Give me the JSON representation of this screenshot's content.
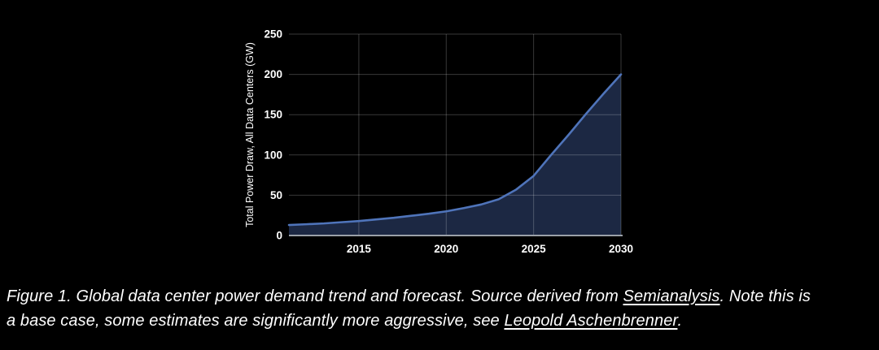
{
  "figure": {
    "caption": {
      "line1_pre": "Figure 1. Global data center power demand trend and forecast. Source derived from ",
      "line1_link": "Semianalysis",
      "line1_post": ". Note this is",
      "line2_pre": "a base case, some estimates are significantly more aggressive, see ",
      "line2_link": "Leopold Aschenbrenner",
      "line2_post": "."
    }
  },
  "chart_data": {
    "type": "area",
    "title": "",
    "xlabel": "",
    "ylabel": "Total Power Draw, All Data Centers (GW)",
    "x": [
      2011,
      2012,
      2013,
      2014,
      2015,
      2016,
      2017,
      2018,
      2019,
      2020,
      2021,
      2022,
      2023,
      2024,
      2025,
      2026,
      2027,
      2028,
      2029,
      2030
    ],
    "values": [
      13,
      14,
      15,
      16.5,
      18,
      20,
      22,
      24.5,
      27,
      30,
      34,
      38.5,
      45,
      57,
      74,
      100,
      125,
      151,
      176,
      200
    ],
    "xticks": [
      2015,
      2020,
      2025,
      2030
    ],
    "yticks": [
      0,
      50,
      100,
      150,
      200,
      250
    ],
    "xlim": [
      2011,
      2030
    ],
    "ylim": [
      0,
      250
    ],
    "grid": true,
    "legend": false,
    "colors": {
      "background": "#000000",
      "area_fill": "#1c2843",
      "line": "#4f74ba",
      "gridline": "rgba(255,255,255,0.22)",
      "axis_line": "#9aa0a8",
      "text": "#ffffff"
    }
  }
}
